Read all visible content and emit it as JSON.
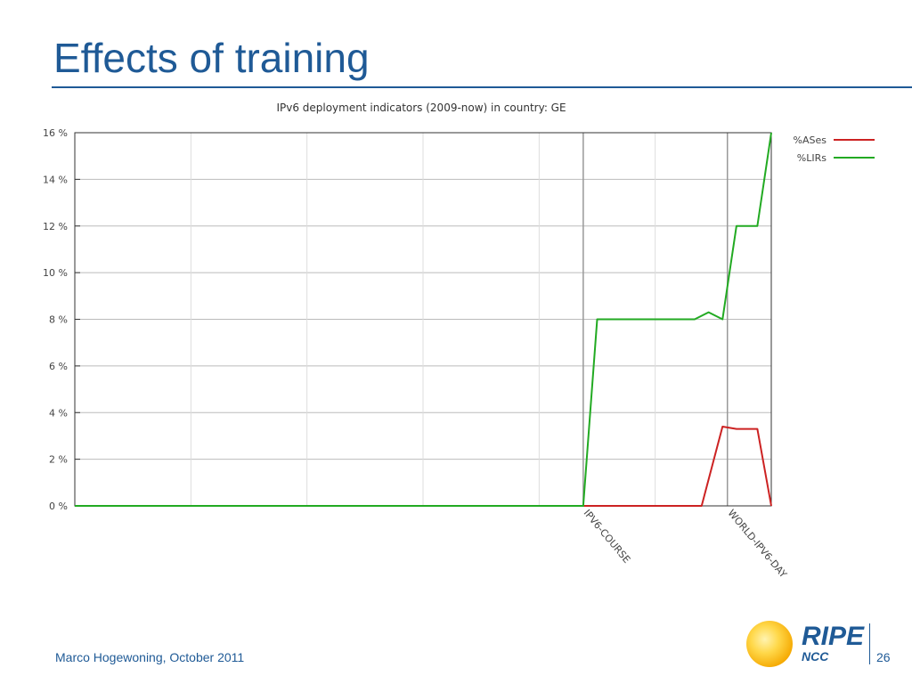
{
  "slide": {
    "title": "Effects of training",
    "footer": "Marco Hogewoning, October 2011",
    "page_number": "26",
    "logo_primary": "RIPE",
    "logo_secondary": "NCC"
  },
  "chart_data": {
    "type": "line",
    "title": "IPv6 deployment indicators (2009-now) in country: GE",
    "xlabel": "",
    "ylabel": "",
    "ylim": [
      0,
      16
    ],
    "yticks": [
      0,
      2,
      4,
      6,
      8,
      10,
      12,
      14,
      16
    ],
    "ytick_suffix": " %",
    "xlim": [
      0,
      100
    ],
    "grid": true,
    "legend_position": "top-right",
    "annotations": [
      {
        "label": "IPV6-COURSE",
        "x": 73
      },
      {
        "label": "WORLD-IPV6-DAY",
        "x": 93.7
      }
    ],
    "series": [
      {
        "name": "%ASes",
        "color": "#cc2222",
        "x": [
          0,
          73,
          90,
          93,
          95,
          98,
          100
        ],
        "y": [
          0,
          0,
          0,
          3.4,
          3.3,
          3.3,
          0
        ]
      },
      {
        "name": "%LIRs",
        "color": "#22aa22",
        "x": [
          0,
          73,
          75,
          89,
          91,
          93,
          95,
          97,
          98,
          100
        ],
        "y": [
          0,
          0,
          8,
          8,
          8.3,
          8,
          12,
          12,
          12,
          16
        ]
      }
    ]
  }
}
